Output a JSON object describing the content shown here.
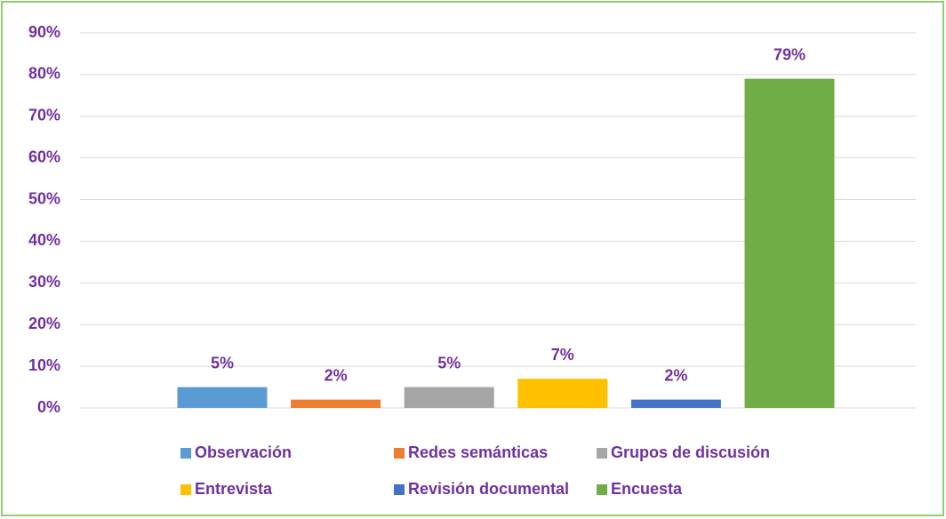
{
  "chart_data": {
    "type": "bar",
    "series": [
      {
        "name": "Observación",
        "color": "#5b9bd5",
        "values": [
          5
        ],
        "value_labels": [
          "5%"
        ]
      },
      {
        "name": "Redes semánticas",
        "color": "#ed7d31",
        "values": [
          2
        ],
        "value_labels": [
          "2%"
        ]
      },
      {
        "name": "Grupos de discusión",
        "color": "#a5a5a5",
        "values": [
          5
        ],
        "value_labels": [
          "5%"
        ]
      },
      {
        "name": "Entrevista",
        "color": "#ffc000",
        "values": [
          7
        ],
        "value_labels": [
          "7%"
        ]
      },
      {
        "name": "Revisión documental",
        "color": "#4472c4",
        "values": [
          2
        ],
        "value_labels": [
          "2%"
        ]
      },
      {
        "name": "Encuesta",
        "color": "#70ad47",
        "values": [
          79
        ],
        "value_labels": [
          "79%"
        ]
      }
    ],
    "ylim": [
      0,
      90
    ],
    "yticks": [
      {
        "value": 0,
        "label": "0%"
      },
      {
        "value": 10,
        "label": "10%"
      },
      {
        "value": 20,
        "label": "20%"
      },
      {
        "value": 30,
        "label": "30%"
      },
      {
        "value": 40,
        "label": "40%"
      },
      {
        "value": 50,
        "label": "50%"
      },
      {
        "value": 60,
        "label": "60%"
      },
      {
        "value": 70,
        "label": "70%"
      },
      {
        "value": 80,
        "label": "80%"
      },
      {
        "value": 90,
        "label": "90%"
      }
    ],
    "grid": true,
    "legend": "bottom"
  }
}
